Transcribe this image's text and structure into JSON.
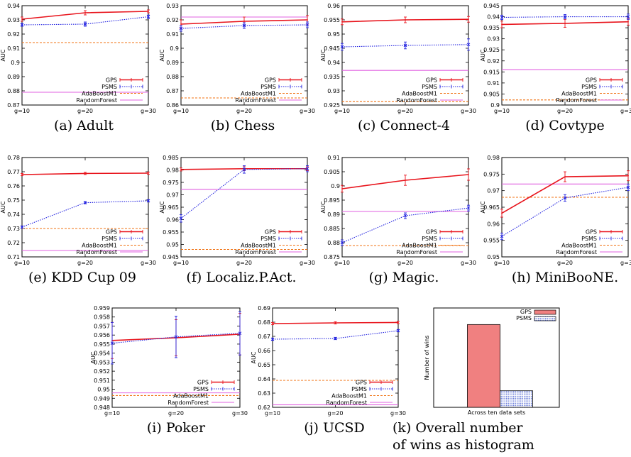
{
  "colors": {
    "GPS": "#e8141c",
    "PSMS": "#2323e0",
    "AdaBoostM1": "#f07010",
    "RandomForest": "#e060e0",
    "hist_gps": "#f08080",
    "hist_psms": "#5a6fd6"
  },
  "legend_labels": [
    "GPS",
    "PSMS",
    "AdaBoostM1",
    "RandomForest"
  ],
  "chart_data": [
    {
      "id": "a",
      "type": "line",
      "caption": "(a) Adult",
      "ylabel": "AUC",
      "categories": [
        "g=10",
        "g=20",
        "g=30"
      ],
      "yticks": [
        "0.87",
        "0.88",
        "0.89",
        "0.9",
        "0.91",
        "0.92",
        "0.93",
        "0.94"
      ],
      "ylim": [
        0.87,
        0.94
      ],
      "series": [
        {
          "name": "GPS",
          "values": [
            0.9305,
            0.935,
            0.936
          ],
          "err": [
            0.0015,
            0.0015,
            0.001
          ]
        },
        {
          "name": "PSMS",
          "values": [
            0.9265,
            0.927,
            0.9322
          ],
          "err": [
            0.001,
            0.0015,
            0.0012
          ]
        },
        {
          "name": "AdaBoostM1",
          "values": [
            0.914,
            0.914,
            0.914
          ]
        },
        {
          "name": "RandomForest",
          "values": [
            0.879,
            0.879,
            0.879
          ]
        }
      ]
    },
    {
      "id": "b",
      "type": "line",
      "caption": "(b) Chess",
      "ylabel": "AUC",
      "categories": [
        "g=10",
        "g=20",
        "g=30"
      ],
      "yticks": [
        "0.86",
        "0.87",
        "0.88",
        "0.89",
        "0.9",
        "0.91",
        "0.92",
        "0.93"
      ],
      "ylim": [
        0.86,
        0.93
      ],
      "series": [
        {
          "name": "GPS",
          "values": [
            0.917,
            0.919,
            0.92
          ],
          "err": [
            0.003,
            0.003,
            0.003
          ]
        },
        {
          "name": "PSMS",
          "values": [
            0.914,
            0.916,
            0.9165
          ],
          "err": [
            0.002,
            0.002,
            0.002
          ]
        },
        {
          "name": "AdaBoostM1",
          "values": [
            0.865,
            0.865,
            0.865
          ]
        },
        {
          "name": "RandomForest",
          "values": [
            0.922,
            0.922,
            0.922
          ]
        }
      ]
    },
    {
      "id": "c",
      "type": "line",
      "caption": "(c) Connect-4",
      "ylabel": "AUC",
      "categories": [
        "g=10",
        "g=20",
        "g=30"
      ],
      "yticks": [
        "0.925",
        "0.93",
        "0.935",
        "0.94",
        "0.945",
        "0.95",
        "0.955",
        "0.96"
      ],
      "ylim": [
        0.925,
        0.96
      ],
      "series": [
        {
          "name": "GPS",
          "values": [
            0.9543,
            0.955,
            0.9552
          ],
          "err": [
            0.001,
            0.001,
            0.001
          ]
        },
        {
          "name": "PSMS",
          "values": [
            0.9455,
            0.946,
            0.9463
          ],
          "err": [
            0.0012,
            0.0012,
            0.002
          ]
        },
        {
          "name": "AdaBoostM1",
          "values": [
            0.9262,
            0.9262,
            0.9262
          ]
        },
        {
          "name": "RandomForest",
          "values": [
            0.9372,
            0.9372,
            0.9372
          ]
        }
      ]
    },
    {
      "id": "d",
      "type": "line",
      "caption": "(d) Covtype",
      "ylabel": "AUC",
      "categories": [
        "g=10",
        "g=20",
        "g=30"
      ],
      "yticks": [
        "0.9",
        "0.905",
        "0.91",
        "0.915",
        "0.92",
        "0.925",
        "0.93",
        "0.935",
        "0.94",
        "0.945"
      ],
      "ylim": [
        0.9,
        0.945
      ],
      "series": [
        {
          "name": "GPS",
          "values": [
            0.9365,
            0.937,
            0.9377
          ],
          "err": [
            0.0015,
            0.0018,
            0.0015
          ]
        },
        {
          "name": "PSMS",
          "values": [
            0.9397,
            0.94,
            0.94
          ],
          "err": [
            0.001,
            0.001,
            0.0012
          ]
        },
        {
          "name": "AdaBoostM1",
          "values": [
            0.9023,
            0.9023,
            0.9023
          ]
        },
        {
          "name": "RandomForest",
          "values": [
            0.916,
            0.916,
            0.916
          ]
        }
      ]
    },
    {
      "id": "e",
      "type": "line",
      "caption": "(e) KDD Cup 09",
      "ylabel": "AUC",
      "categories": [
        "g=10",
        "g=20",
        "g=30"
      ],
      "yticks": [
        "0.71",
        "0.72",
        "0.73",
        "0.74",
        "0.75",
        "0.76",
        "0.77",
        "0.78"
      ],
      "ylim": [
        0.71,
        0.78
      ],
      "series": [
        {
          "name": "GPS",
          "values": [
            0.768,
            0.7688,
            0.769
          ],
          "err": [
            0.0008,
            0.0008,
            0.0008
          ]
        },
        {
          "name": "PSMS",
          "values": [
            0.731,
            0.7482,
            0.7495
          ],
          "err": [
            0.0008,
            0.0008,
            0.0008
          ]
        },
        {
          "name": "AdaBoostM1",
          "values": [
            0.73,
            0.73,
            0.73
          ]
        },
        {
          "name": "RandomForest",
          "values": [
            0.7145,
            0.7145,
            0.7145
          ]
        }
      ]
    },
    {
      "id": "f",
      "type": "line",
      "caption": "(f) Localiz.P.Act.",
      "ylabel": "AUC",
      "categories": [
        "g=10",
        "g=20",
        "g=30"
      ],
      "yticks": [
        "0.945",
        "0.95",
        "0.955",
        "0.96",
        "0.965",
        "0.97",
        "0.975",
        "0.98",
        "0.985"
      ],
      "ylim": [
        0.945,
        0.985
      ],
      "series": [
        {
          "name": "GPS",
          "values": [
            0.9802,
            0.9805,
            0.9805
          ],
          "err": [
            0.0006,
            0.0008,
            0.0008
          ]
        },
        {
          "name": "PSMS",
          "values": [
            0.9605,
            0.9802,
            0.9805
          ],
          "err": [
            0.0015,
            0.0015,
            0.0012
          ]
        },
        {
          "name": "AdaBoostM1",
          "values": [
            0.948,
            0.948,
            0.948
          ]
        },
        {
          "name": "RandomForest",
          "values": [
            0.9722,
            0.9722,
            0.9722
          ]
        }
      ]
    },
    {
      "id": "g",
      "type": "line",
      "caption": "(g) Magic.",
      "ylabel": "AUC",
      "categories": [
        "g=10",
        "g=20",
        "g=30"
      ],
      "yticks": [
        "0.875",
        "0.88",
        "0.885",
        "0.89",
        "0.895",
        "0.9",
        "0.905",
        "0.91"
      ],
      "ylim": [
        0.875,
        0.91
      ],
      "series": [
        {
          "name": "GPS",
          "values": [
            0.899,
            0.902,
            0.904
          ],
          "err": [
            0.0012,
            0.0018,
            0.002
          ]
        },
        {
          "name": "PSMS",
          "values": [
            0.88,
            0.8895,
            0.8922
          ],
          "err": [
            0.001,
            0.001,
            0.001
          ]
        },
        {
          "name": "AdaBoostM1",
          "values": [
            0.879,
            0.879,
            0.879
          ]
        },
        {
          "name": "RandomForest",
          "values": [
            0.891,
            0.891,
            0.891
          ]
        }
      ]
    },
    {
      "id": "h",
      "type": "line",
      "caption": "(h) MiniBooNE.",
      "ylabel": "AUC",
      "categories": [
        "g=10",
        "g=20",
        "g=30"
      ],
      "yticks": [
        "0.95",
        "0.955",
        "0.96",
        "0.965",
        "0.97",
        "0.975",
        "0.98"
      ],
      "ylim": [
        0.95,
        0.98
      ],
      "series": [
        {
          "name": "GPS",
          "values": [
            0.9632,
            0.9742,
            0.9745
          ],
          "err": [
            0.0012,
            0.0015,
            0.0015
          ]
        },
        {
          "name": "PSMS",
          "values": [
            0.9562,
            0.9678,
            0.971
          ],
          "err": [
            0.001,
            0.001,
            0.001
          ]
        },
        {
          "name": "AdaBoostM1",
          "values": [
            0.968,
            0.968,
            0.968
          ]
        },
        {
          "name": "RandomForest",
          "values": [
            0.972,
            0.972,
            0.972
          ]
        }
      ]
    },
    {
      "id": "i",
      "type": "line",
      "caption": "(i) Poker",
      "ylabel": "AUC",
      "categories": [
        "g=10",
        "g=20",
        "g=30"
      ],
      "yticks": [
        "0.948",
        "0.949",
        "0.95",
        "0.951",
        "0.952",
        "0.953",
        "0.954",
        "0.955",
        "0.956",
        "0.957",
        "0.958",
        "0.959"
      ],
      "ylim": [
        0.948,
        0.959
      ],
      "series": [
        {
          "name": "GPS",
          "values": [
            0.9554,
            0.9557,
            0.9561
          ],
          "err": [
            0.002,
            0.002,
            0.0023
          ]
        },
        {
          "name": "PSMS",
          "values": [
            0.9551,
            0.9558,
            0.9562
          ],
          "err": [
            0.0023,
            0.0023,
            0.0024
          ]
        },
        {
          "name": "AdaBoostM1",
          "values": [
            0.9493,
            0.9493,
            0.9493
          ]
        },
        {
          "name": "RandomForest",
          "values": [
            0.9496,
            0.9496,
            0.9496
          ]
        }
      ]
    },
    {
      "id": "j",
      "type": "line",
      "caption": "(j) UCSD",
      "ylabel": "AUC",
      "categories": [
        "g=10",
        "g=20",
        "g=30"
      ],
      "yticks": [
        "0.62",
        "0.63",
        "0.64",
        "0.65",
        "0.66",
        "0.67",
        "0.68",
        "0.69"
      ],
      "ylim": [
        0.62,
        0.69
      ],
      "series": [
        {
          "name": "GPS",
          "values": [
            0.679,
            0.6795,
            0.6798
          ],
          "err": [
            0.0008,
            0.0008,
            0.0008
          ]
        },
        {
          "name": "PSMS",
          "values": [
            0.668,
            0.6685,
            0.674
          ],
          "err": [
            0.0008,
            0.0008,
            0.0008
          ]
        },
        {
          "name": "AdaBoostM1",
          "values": [
            0.639,
            0.639,
            0.639
          ]
        },
        {
          "name": "RandomForest",
          "values": [
            0.6218,
            0.6218,
            0.6218
          ]
        }
      ]
    },
    {
      "id": "k",
      "type": "bar",
      "caption": "(k) Overall number of wins as histogram",
      "caption_lines": [
        "(k)  Overall  number",
        "of wins as histogram"
      ],
      "ylabel": "Number of wins",
      "xlabel": "Across ten data sets",
      "series": [
        {
          "name": "GPS",
          "values": [
            25
          ]
        },
        {
          "name": "PSMS",
          "values": [
            5
          ]
        }
      ],
      "ylim": [
        0,
        30
      ]
    }
  ]
}
